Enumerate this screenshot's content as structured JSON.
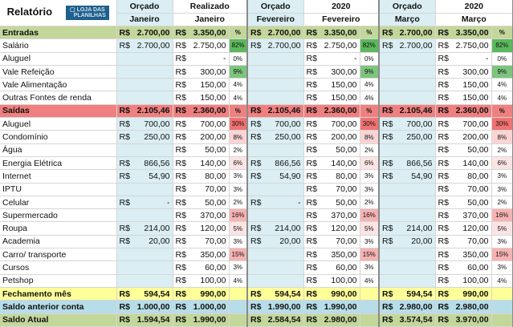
{
  "title": "Relatório",
  "logo": "LOJA DAS PLANILHAS",
  "header": {
    "blocks": [
      {
        "orcado": "Orçado",
        "real": "Realizado",
        "month_orc": "Janeiro",
        "month_real": "Janeiro"
      },
      {
        "orcado": "Orçado",
        "real": "2020",
        "month_orc": "Fevereiro",
        "month_real": "Fevereiro"
      },
      {
        "orcado": "Orçado",
        "real": "2020",
        "month_orc": "Março",
        "month_real": "Março"
      }
    ]
  },
  "currency": "R$",
  "rows": [
    {
      "label": "Entradas",
      "type": "entradas",
      "cells": [
        [
          "2.700,00",
          "3.350,00",
          "%"
        ],
        [
          "2.700,00",
          "3.350,00",
          "%"
        ],
        [
          "2.700,00",
          "3.350,00",
          "%"
        ]
      ]
    },
    {
      "label": "Salário",
      "type": "in",
      "cells": [
        [
          "2.700,00",
          "2.750,00",
          "82%"
        ],
        [
          "2.700,00",
          "2.750,00",
          "82%"
        ],
        [
          "2.700,00",
          "2.750,00",
          "82%"
        ]
      ]
    },
    {
      "label": "Aluguel",
      "type": "in",
      "cells": [
        [
          "",
          "-",
          "0%"
        ],
        [
          "",
          "-",
          "0%"
        ],
        [
          "",
          "-",
          "0%"
        ]
      ]
    },
    {
      "label": "Vale Refeição",
      "type": "in",
      "cells": [
        [
          "",
          "300,00",
          "9%"
        ],
        [
          "",
          "300,00",
          "9%"
        ],
        [
          "",
          "300,00",
          "9%"
        ]
      ]
    },
    {
      "label": "Vale Alimentação",
      "type": "in",
      "cells": [
        [
          "",
          "150,00",
          "4%"
        ],
        [
          "",
          "150,00",
          "4%"
        ],
        [
          "",
          "150,00",
          "4%"
        ]
      ]
    },
    {
      "label": "Outras Fontes de renda",
      "type": "in",
      "cells": [
        [
          "",
          "150,00",
          "4%"
        ],
        [
          "",
          "150,00",
          "4%"
        ],
        [
          "",
          "150,00",
          "4%"
        ]
      ]
    },
    {
      "label": "Saídas",
      "type": "saidas",
      "cells": [
        [
          "2.105,46",
          "2.360,00",
          "%"
        ],
        [
          "2.105,46",
          "2.360,00",
          "%"
        ],
        [
          "2.105,46",
          "2.360,00",
          "%"
        ]
      ]
    },
    {
      "label": "Aluguel",
      "type": "out",
      "cells": [
        [
          "700,00",
          "700,00",
          "30%"
        ],
        [
          "700,00",
          "700,00",
          "30%"
        ],
        [
          "700,00",
          "700,00",
          "30%"
        ]
      ]
    },
    {
      "label": "Condomínio",
      "type": "out",
      "cells": [
        [
          "250,00",
          "200,00",
          "8%"
        ],
        [
          "250,00",
          "200,00",
          "8%"
        ],
        [
          "250,00",
          "200,00",
          "8%"
        ]
      ]
    },
    {
      "label": "Água",
      "type": "out",
      "cells": [
        [
          "",
          "50,00",
          "2%"
        ],
        [
          "",
          "50,00",
          "2%"
        ],
        [
          "",
          "50,00",
          "2%"
        ]
      ]
    },
    {
      "label": "Energia Elétrica",
      "type": "out",
      "cells": [
        [
          "866,56",
          "140,00",
          "6%"
        ],
        [
          "866,56",
          "140,00",
          "6%"
        ],
        [
          "866,56",
          "140,00",
          "6%"
        ]
      ]
    },
    {
      "label": "Internet",
      "type": "out",
      "cells": [
        [
          "54,90",
          "80,00",
          "3%"
        ],
        [
          "54,90",
          "80,00",
          "3%"
        ],
        [
          "54,90",
          "80,00",
          "3%"
        ]
      ]
    },
    {
      "label": "IPTU",
      "type": "out",
      "cells": [
        [
          "",
          "70,00",
          "3%"
        ],
        [
          "",
          "70,00",
          "3%"
        ],
        [
          "",
          "70,00",
          "3%"
        ]
      ]
    },
    {
      "label": "Celular",
      "type": "out",
      "cells": [
        [
          "-",
          "50,00",
          "2%"
        ],
        [
          "-",
          "50,00",
          "2%"
        ],
        [
          "",
          "50,00",
          "2%"
        ]
      ]
    },
    {
      "label": "Supermercado",
      "type": "out",
      "cells": [
        [
          "",
          "370,00",
          "16%"
        ],
        [
          "",
          "370,00",
          "16%"
        ],
        [
          "",
          "370,00",
          "16%"
        ]
      ]
    },
    {
      "label": "Roupa",
      "type": "out",
      "cells": [
        [
          "214,00",
          "120,00",
          "5%"
        ],
        [
          "214,00",
          "120,00",
          "5%"
        ],
        [
          "214,00",
          "120,00",
          "5%"
        ]
      ]
    },
    {
      "label": "Academia",
      "type": "out",
      "cells": [
        [
          "20,00",
          "70,00",
          "3%"
        ],
        [
          "20,00",
          "70,00",
          "3%"
        ],
        [
          "20,00",
          "70,00",
          "3%"
        ]
      ]
    },
    {
      "label": "Carro/ transporte",
      "type": "out",
      "cells": [
        [
          "",
          "350,00",
          "15%"
        ],
        [
          "",
          "350,00",
          "15%"
        ],
        [
          "",
          "350,00",
          "15%"
        ]
      ]
    },
    {
      "label": "Cursos",
      "type": "out",
      "cells": [
        [
          "",
          "60,00",
          "3%"
        ],
        [
          "",
          "60,00",
          "3%"
        ],
        [
          "",
          "60,00",
          "3%"
        ]
      ]
    },
    {
      "label": "Petshop",
      "type": "out",
      "cells": [
        [
          "",
          "100,00",
          "4%"
        ],
        [
          "",
          "100,00",
          "4%"
        ],
        [
          "",
          "100,00",
          "4%"
        ]
      ]
    },
    {
      "label": "Fechamento mês",
      "type": "fech",
      "cells": [
        [
          "594,54",
          "990,00",
          ""
        ],
        [
          "594,54",
          "990,00",
          ""
        ],
        [
          "594,54",
          "990,00",
          ""
        ]
      ]
    },
    {
      "label": "Saldo anterior conta",
      "type": "ant",
      "cells": [
        [
          "1.000,00",
          "1.000,00",
          ""
        ],
        [
          "1.990,00",
          "1.990,00",
          ""
        ],
        [
          "2.980,00",
          "2.980,00",
          ""
        ]
      ]
    },
    {
      "label": "Saldo Atual",
      "type": "atual",
      "cells": [
        [
          "1.594,54",
          "1.990,00",
          ""
        ],
        [
          "2.584,54",
          "2.980,00",
          ""
        ],
        [
          "3.574,54",
          "3.970,00",
          ""
        ]
      ]
    }
  ]
}
